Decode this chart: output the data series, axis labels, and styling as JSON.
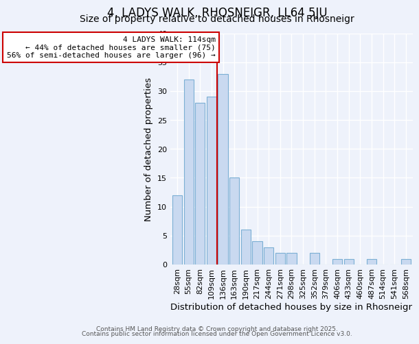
{
  "title": "4, LADYS WALK, RHOSNEIGR, LL64 5JU",
  "subtitle": "Size of property relative to detached houses in Rhosneigr",
  "xlabel": "Distribution of detached houses by size in Rhosneigr",
  "ylabel": "Number of detached properties",
  "categories": [
    "28sqm",
    "55sqm",
    "82sqm",
    "109sqm",
    "136sqm",
    "163sqm",
    "190sqm",
    "217sqm",
    "244sqm",
    "271sqm",
    "298sqm",
    "325sqm",
    "352sqm",
    "379sqm",
    "406sqm",
    "433sqm",
    "460sqm",
    "487sqm",
    "514sqm",
    "541sqm",
    "568sqm"
  ],
  "values": [
    12,
    32,
    28,
    29,
    33,
    15,
    6,
    4,
    3,
    2,
    2,
    0,
    2,
    0,
    1,
    1,
    0,
    1,
    0,
    0,
    1
  ],
  "bar_color": "#c9d9f0",
  "bar_edge_color": "#7bafd4",
  "vline_x_index": 3.5,
  "vline_color": "#cc0000",
  "annotation_line1": "4 LADYS WALK: 114sqm",
  "annotation_line2": "← 44% of detached houses are smaller (75)",
  "annotation_line3": "56% of semi-detached houses are larger (96) →",
  "annotation_box_color": "#ffffff",
  "annotation_box_edge": "#cc0000",
  "ylim": [
    0,
    40
  ],
  "yticks": [
    0,
    5,
    10,
    15,
    20,
    25,
    30,
    35,
    40
  ],
  "footer1": "Contains HM Land Registry data © Crown copyright and database right 2025.",
  "footer2": "Contains public sector information licensed under the Open Government Licence v3.0.",
  "background_color": "#eef2fb",
  "title_fontsize": 12,
  "subtitle_fontsize": 10,
  "axis_label_fontsize": 9.5,
  "tick_fontsize": 8,
  "annotation_fontsize": 8,
  "footer_fontsize": 6.5
}
